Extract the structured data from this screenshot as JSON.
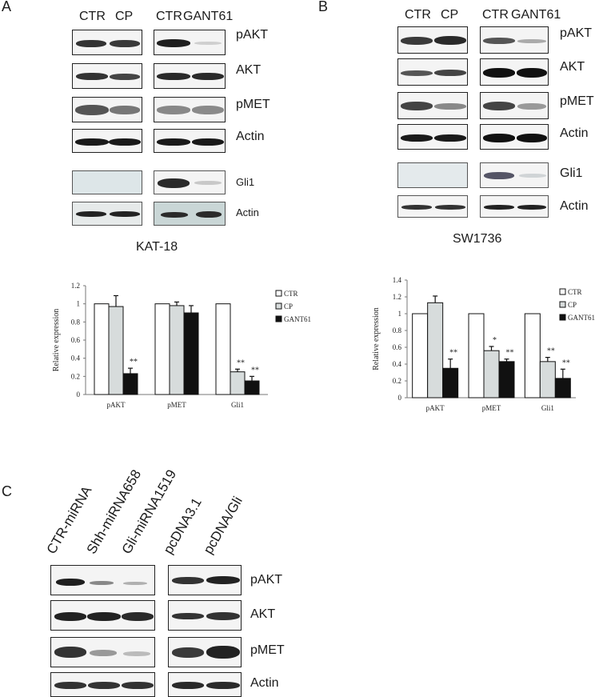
{
  "panelA": {
    "letter": "A",
    "lanes_left": [
      "CTR",
      "CP"
    ],
    "lanes_right": [
      "CTR",
      "GANT61"
    ],
    "proteins": [
      "pAKT",
      "AKT",
      "pMET",
      "Actin",
      "Gli1",
      "Actin"
    ],
    "cell_line": "KAT-18"
  },
  "panelB": {
    "letter": "B",
    "lanes_left": [
      "CTR",
      "CP"
    ],
    "lanes_right": [
      "CTR",
      "GANT61"
    ],
    "proteins": [
      "pAKT",
      "AKT",
      "pMET",
      "Actin",
      "Gli1",
      "Actin"
    ],
    "cell_line": "SW1736"
  },
  "panelC": {
    "letter": "C",
    "lanes_left": [
      "CTR-miRNA",
      "Shh-miRNA658",
      "Gli-miRNA1519"
    ],
    "lanes_right": [
      "pcDNA3.1",
      "pcDNA/Gli"
    ],
    "proteins": [
      "pAKT",
      "AKT",
      "pMET",
      "Actin"
    ]
  },
  "chart_data": [
    {
      "type": "bar",
      "ylabel": "Relative expression",
      "ylim": [
        0,
        1.2
      ],
      "yticks": [
        "0",
        "0.2",
        "0.4",
        "0.6",
        "0.8",
        "1",
        "1.2"
      ],
      "categories": [
        "pAKT",
        "pMET",
        "Gli1"
      ],
      "series": [
        {
          "name": "CTR",
          "color": "#ffffff",
          "values": [
            1.0,
            1.0,
            1.0
          ],
          "errors": [
            0,
            0,
            0
          ]
        },
        {
          "name": "CP",
          "color": "#d7dcdc",
          "values": [
            0.97,
            0.98,
            0.25
          ],
          "errors": [
            0.12,
            0.04,
            0.03
          ]
        },
        {
          "name": "GANT61",
          "color": "#111111",
          "values": [
            0.23,
            0.9,
            0.15
          ],
          "errors": [
            0.06,
            0.08,
            0.05
          ]
        }
      ],
      "annotations": [
        {
          "category": "pAKT",
          "series": "GANT61",
          "text": "**"
        },
        {
          "category": "Gli1",
          "series": "CP",
          "text": "**"
        },
        {
          "category": "Gli1",
          "series": "GANT61",
          "text": "**"
        }
      ],
      "legend": "top-right"
    },
    {
      "type": "bar",
      "ylabel": "Relative expression",
      "ylim": [
        0,
        1.4
      ],
      "yticks": [
        "0",
        "0.2",
        "0.4",
        "0.6",
        "0.8",
        "1",
        "1.2",
        "1.4"
      ],
      "categories": [
        "pAKT",
        "pMET",
        "Gli1"
      ],
      "series": [
        {
          "name": "CTR",
          "color": "#ffffff",
          "values": [
            1.0,
            1.0,
            1.0
          ],
          "errors": [
            0,
            0,
            0
          ]
        },
        {
          "name": "CP",
          "color": "#d7dcdc",
          "values": [
            1.13,
            0.56,
            0.43
          ],
          "errors": [
            0.08,
            0.05,
            0.05
          ]
        },
        {
          "name": "GANT61",
          "color": "#111111",
          "values": [
            0.35,
            0.43,
            0.23
          ],
          "errors": [
            0.11,
            0.03,
            0.11
          ]
        }
      ],
      "annotations": [
        {
          "category": "pAKT",
          "series": "GANT61",
          "text": "**"
        },
        {
          "category": "pMET",
          "series": "CP",
          "text": "*"
        },
        {
          "category": "pMET",
          "series": "GANT61",
          "text": "**"
        },
        {
          "category": "Gli1",
          "series": "CP",
          "text": "**"
        },
        {
          "category": "Gli1",
          "series": "GANT61",
          "text": "**"
        }
      ],
      "legend": "top-right"
    }
  ]
}
